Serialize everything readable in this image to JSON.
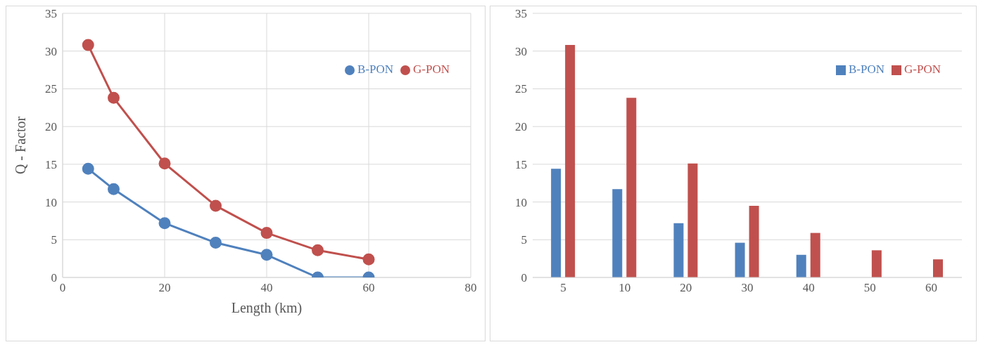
{
  "chart_data": [
    {
      "type": "line",
      "xlabel": "Length (km)",
      "ylabel": "Q - Factor",
      "x": [
        5,
        10,
        20,
        30,
        40,
        50,
        60
      ],
      "xlim": [
        0,
        80
      ],
      "xticks": [
        0,
        20,
        40,
        60,
        80
      ],
      "ylim": [
        0,
        35
      ],
      "yticks": [
        0,
        5,
        10,
        15,
        20,
        25,
        30,
        35
      ],
      "grid": true,
      "legend": "top right",
      "marker": "circle",
      "series": [
        {
          "name": "B-PON",
          "color": "#4f81bd",
          "values": [
            14.4,
            11.7,
            7.2,
            4.6,
            3.0,
            0,
            0
          ]
        },
        {
          "name": "G-PON",
          "color": "#c0504d",
          "values": [
            30.8,
            23.8,
            15.1,
            9.5,
            5.9,
            3.6,
            2.4
          ]
        }
      ]
    },
    {
      "type": "bar",
      "categories": [
        "5",
        "10",
        "20",
        "30",
        "40",
        "50",
        "60"
      ],
      "ylim": [
        0,
        35
      ],
      "yticks": [
        0,
        5,
        10,
        15,
        20,
        25,
        30,
        35
      ],
      "grid": "y",
      "legend": "top right",
      "series": [
        {
          "name": "B-PON",
          "color": "#4f81bd",
          "values": [
            14.4,
            11.7,
            7.2,
            4.6,
            3.0,
            0,
            0
          ]
        },
        {
          "name": "G-PON",
          "color": "#c0504d",
          "values": [
            30.8,
            23.8,
            15.1,
            9.5,
            5.9,
            3.6,
            2.4
          ]
        }
      ]
    }
  ]
}
